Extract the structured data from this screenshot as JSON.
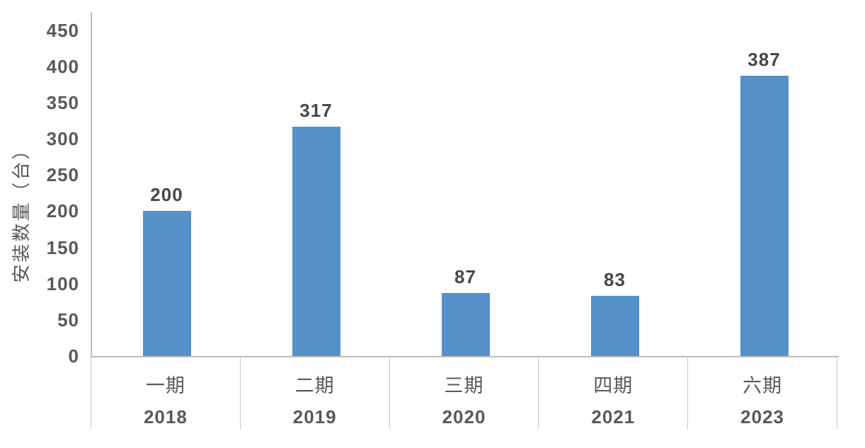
{
  "chart_data": {
    "type": "bar",
    "title": "",
    "ylabel": "安装数量（台）",
    "xlabel": "",
    "categories": [
      "一期",
      "二期",
      "三期",
      "四期",
      "六期"
    ],
    "sub_categories": [
      "2018",
      "2019",
      "2020",
      "2021",
      "2023"
    ],
    "values": [
      200,
      317,
      87,
      83,
      387
    ],
    "data_labels": [
      "200",
      "317",
      "87",
      "83",
      "387"
    ],
    "y_ticks": [
      0,
      50,
      100,
      150,
      200,
      250,
      300,
      350,
      400,
      450
    ],
    "ylim": [
      0,
      475
    ],
    "grid": false,
    "legend": "none",
    "bar_color": "#5591c8",
    "axis_line_color": "#bdbdbd",
    "divider_color": "#c9c9c9",
    "tick_label_color": "#595959",
    "data_label_color": "#474747"
  }
}
